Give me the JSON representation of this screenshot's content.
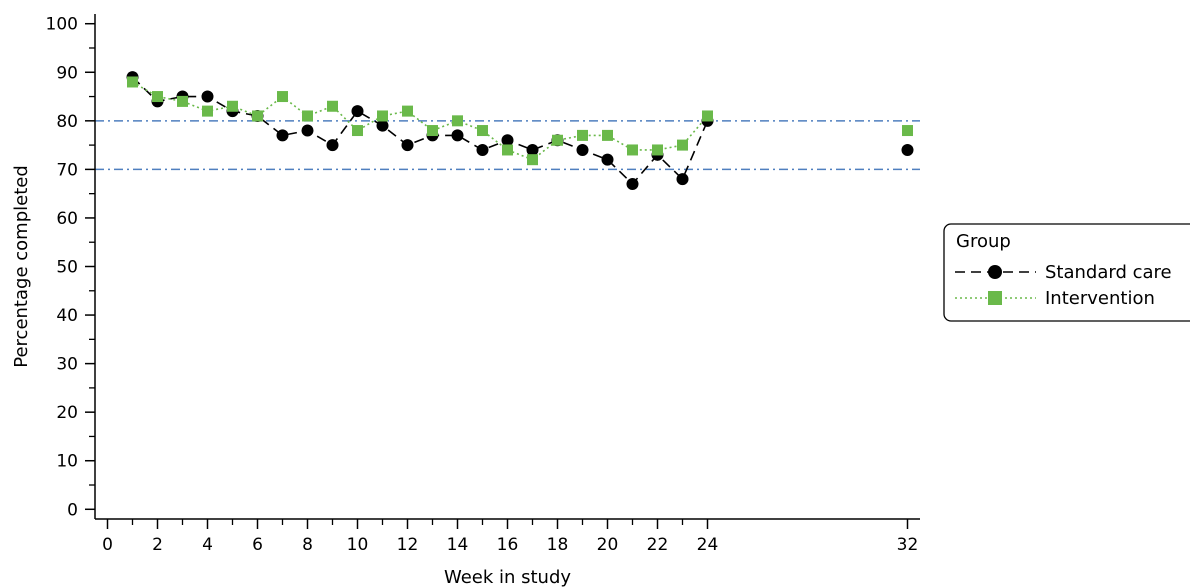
{
  "chart_data": {
    "type": "line",
    "xlabel": "Week in study",
    "ylabel": "Percentage completed",
    "xlim": [
      -0.5,
      32.5
    ],
    "ylim": [
      -2,
      102
    ],
    "x_ticks_major": [
      0,
      2,
      4,
      6,
      8,
      10,
      12,
      14,
      16,
      18,
      20,
      22,
      24,
      32
    ],
    "x_ticks_minor": [
      1,
      3,
      5,
      7,
      9,
      11,
      13,
      15,
      17,
      19,
      21,
      23
    ],
    "y_ticks_major": [
      0,
      10,
      20,
      30,
      40,
      50,
      60,
      70,
      80,
      90,
      100
    ],
    "y_ticks_minor": [
      5,
      15,
      25,
      35,
      45,
      55,
      65,
      75,
      85,
      95
    ],
    "reference_lines": [
      {
        "y": 80,
        "style": "dash-dot",
        "color": "#4f7fbf"
      },
      {
        "y": 70,
        "style": "dash-dot",
        "color": "#4f7fbf"
      }
    ],
    "grid": false,
    "legend": {
      "title": "Group",
      "placement": "right"
    },
    "series": [
      {
        "name": "Standard care",
        "color": "#000000",
        "marker": "circle",
        "line_style": "dashed",
        "x": [
          1,
          2,
          3,
          4,
          5,
          6,
          7,
          8,
          9,
          10,
          11,
          12,
          13,
          14,
          15,
          16,
          17,
          18,
          19,
          20,
          21,
          22,
          23,
          24,
          32
        ],
        "values": [
          89,
          84,
          85,
          85,
          82,
          81,
          77,
          78,
          75,
          82,
          79,
          75,
          77,
          77,
          74,
          76,
          74,
          76,
          74,
          72,
          67,
          73,
          68,
          80,
          74
        ],
        "connected_through": 24
      },
      {
        "name": "Intervention",
        "color": "#6ab94a",
        "marker": "square",
        "line_style": "dotted",
        "x": [
          1,
          2,
          3,
          4,
          5,
          6,
          7,
          8,
          9,
          10,
          11,
          12,
          13,
          14,
          15,
          16,
          17,
          18,
          19,
          20,
          21,
          22,
          23,
          24,
          32
        ],
        "values": [
          88,
          85,
          84,
          82,
          83,
          81,
          85,
          81,
          83,
          78,
          81,
          82,
          78,
          80,
          78,
          74,
          72,
          76,
          77,
          77,
          74,
          74,
          75,
          81,
          78
        ],
        "connected_through": 24
      }
    ]
  }
}
